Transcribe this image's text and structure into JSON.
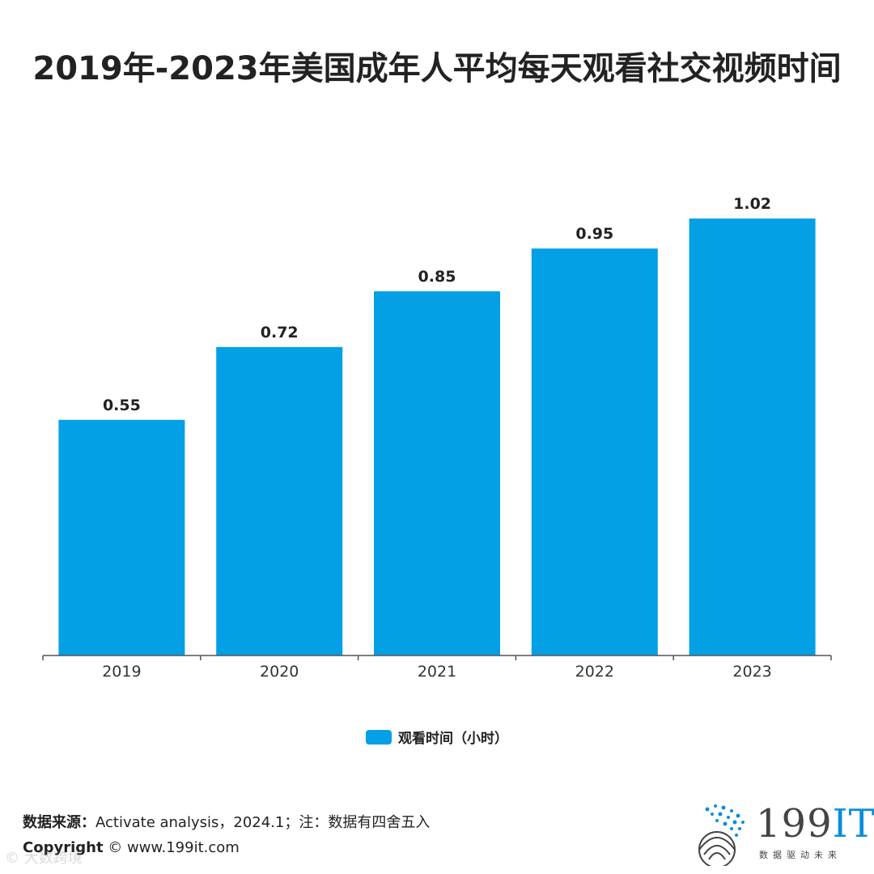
{
  "title": "2019年-2023年美国成年人平均每天观看社交视频时间",
  "colors": {
    "bar": "#03a0e6",
    "axis": "#555555",
    "text": "#222222",
    "logo_accent": "#0c8ed9"
  },
  "chart_data": {
    "type": "bar",
    "categories": [
      "2019",
      "2020",
      "2021",
      "2022",
      "2023"
    ],
    "series": [
      {
        "name": "观看时间（小时）",
        "values": [
          0.55,
          0.72,
          0.85,
          0.95,
          1.02
        ]
      }
    ],
    "data_labels": [
      "0.55",
      "0.72",
      "0.85",
      "0.95",
      "1.02"
    ],
    "ylim": [
      0,
      1.02
    ],
    "grid": false,
    "legend_position": "bottom-center"
  },
  "footer": {
    "source_label": "数据来源：",
    "source_text": "Activate analysis，2024.1；注：数据有四舍五入",
    "copyright_label": "Copyright",
    "copyright_text": " ©  www.199it.com"
  },
  "watermark": "© 大数跨境",
  "logo": {
    "main": "199",
    "accent": "IT",
    "sub": "数据驱动未来"
  }
}
